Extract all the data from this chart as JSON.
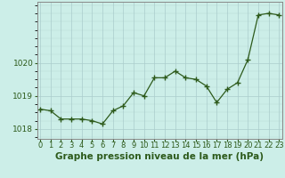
{
  "x": [
    0,
    1,
    2,
    3,
    4,
    5,
    6,
    7,
    8,
    9,
    10,
    11,
    12,
    13,
    14,
    15,
    16,
    17,
    18,
    19,
    20,
    21,
    22,
    23
  ],
  "y": [
    1018.6,
    1018.55,
    1018.3,
    1018.3,
    1018.3,
    1018.25,
    1018.15,
    1018.55,
    1018.7,
    1019.1,
    1019.0,
    1019.55,
    1019.55,
    1019.75,
    1019.55,
    1019.5,
    1019.3,
    1018.8,
    1019.2,
    1019.4,
    1020.1,
    1021.45,
    1021.5,
    1021.45
  ],
  "ylim": [
    1017.7,
    1021.85
  ],
  "yticks": [
    1018,
    1019,
    1020
  ],
  "xticks": [
    0,
    1,
    2,
    3,
    4,
    5,
    6,
    7,
    8,
    9,
    10,
    11,
    12,
    13,
    14,
    15,
    16,
    17,
    18,
    19,
    20,
    21,
    22,
    23
  ],
  "line_color": "#2d5a1b",
  "marker_color": "#2d5a1b",
  "bg_color": "#cceee8",
  "grid_color": "#aacccc",
  "xlabel": "Graphe pression niveau de la mer (hPa)",
  "xlabel_fontsize": 7.5,
  "tick_fontsize": 6.5,
  "figsize": [
    3.2,
    2.0
  ],
  "dpi": 100
}
